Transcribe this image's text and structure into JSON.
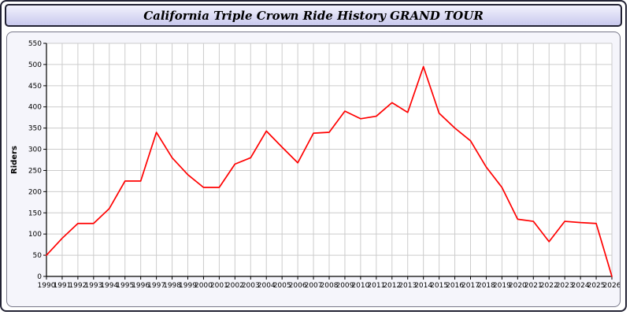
{
  "chart_data": {
    "type": "line",
    "title": "California Triple Crown Ride History GRAND TOUR",
    "xlabel": "",
    "ylabel": "Riders",
    "ylim": [
      0,
      550
    ],
    "ytick_step": 50,
    "grid": true,
    "legend": "none",
    "line_color": "#ff0000",
    "categories": [
      "1990",
      "1991",
      "1992",
      "1993",
      "1994",
      "1995",
      "1996",
      "1997",
      "1998",
      "1999",
      "2000",
      "2001",
      "2002",
      "2003",
      "2004",
      "2005",
      "2006",
      "2007",
      "2008",
      "2009",
      "2010",
      "2011",
      "2012",
      "2013",
      "2014",
      "2015",
      "2016",
      "2017",
      "2018",
      "2019",
      "2020",
      "2021",
      "2022",
      "2023",
      "2024",
      "2025",
      "2026"
    ],
    "values": [
      50,
      90,
      125,
      125,
      160,
      225,
      225,
      340,
      280,
      240,
      210,
      210,
      265,
      280,
      343,
      305,
      268,
      338,
      340,
      390,
      372,
      378,
      410,
      387,
      495,
      385,
      350,
      320,
      258,
      210,
      135,
      130,
      82,
      130,
      127,
      125,
      0
    ]
  },
  "colors": {
    "plot_bg": "#ffffff",
    "panel_bg": "#f5f5fb",
    "grid": "#cccccc",
    "axis": "#000000",
    "tick_label": "#000000"
  }
}
